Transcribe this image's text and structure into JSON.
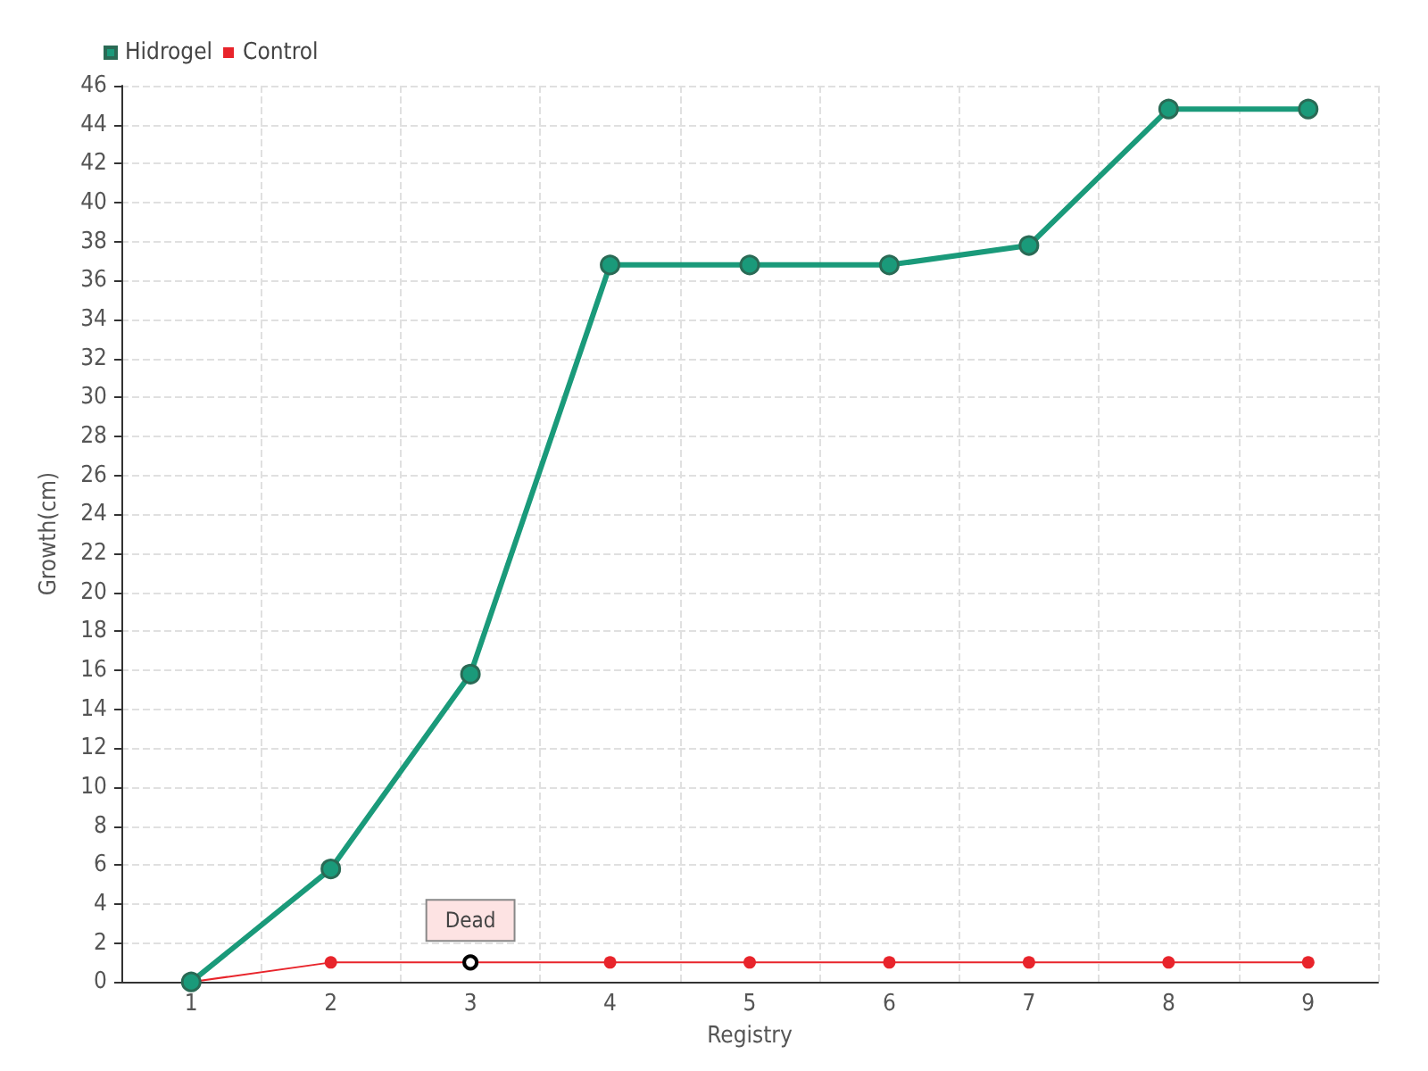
{
  "chart_data": {
    "type": "line",
    "xlabel": "Registry",
    "ylabel": "Growth(cm)",
    "categories": [
      "1",
      "2",
      "3",
      "4",
      "5",
      "6",
      "7",
      "8",
      "9"
    ],
    "series": [
      {
        "name": "Hidrogel",
        "color": "#1a9a7a",
        "values": [
          0,
          5.8,
          15.8,
          36.8,
          36.8,
          36.8,
          37.8,
          44.8,
          44.8
        ]
      },
      {
        "name": "Control",
        "color": "#e8242b",
        "values": [
          0,
          1,
          1,
          1,
          1,
          1,
          1,
          1,
          1
        ]
      }
    ],
    "annotations": [
      {
        "text": "Dead",
        "x": "3",
        "y": 1
      }
    ],
    "ylim": [
      0,
      46
    ],
    "yticks": [
      0,
      2,
      4,
      6,
      8,
      10,
      12,
      14,
      16,
      18,
      20,
      22,
      24,
      26,
      28,
      30,
      32,
      34,
      36,
      38,
      40,
      42,
      44,
      46
    ],
    "grid": true,
    "legend": "top left",
    "marker": "circle",
    "line_style": "solid"
  }
}
